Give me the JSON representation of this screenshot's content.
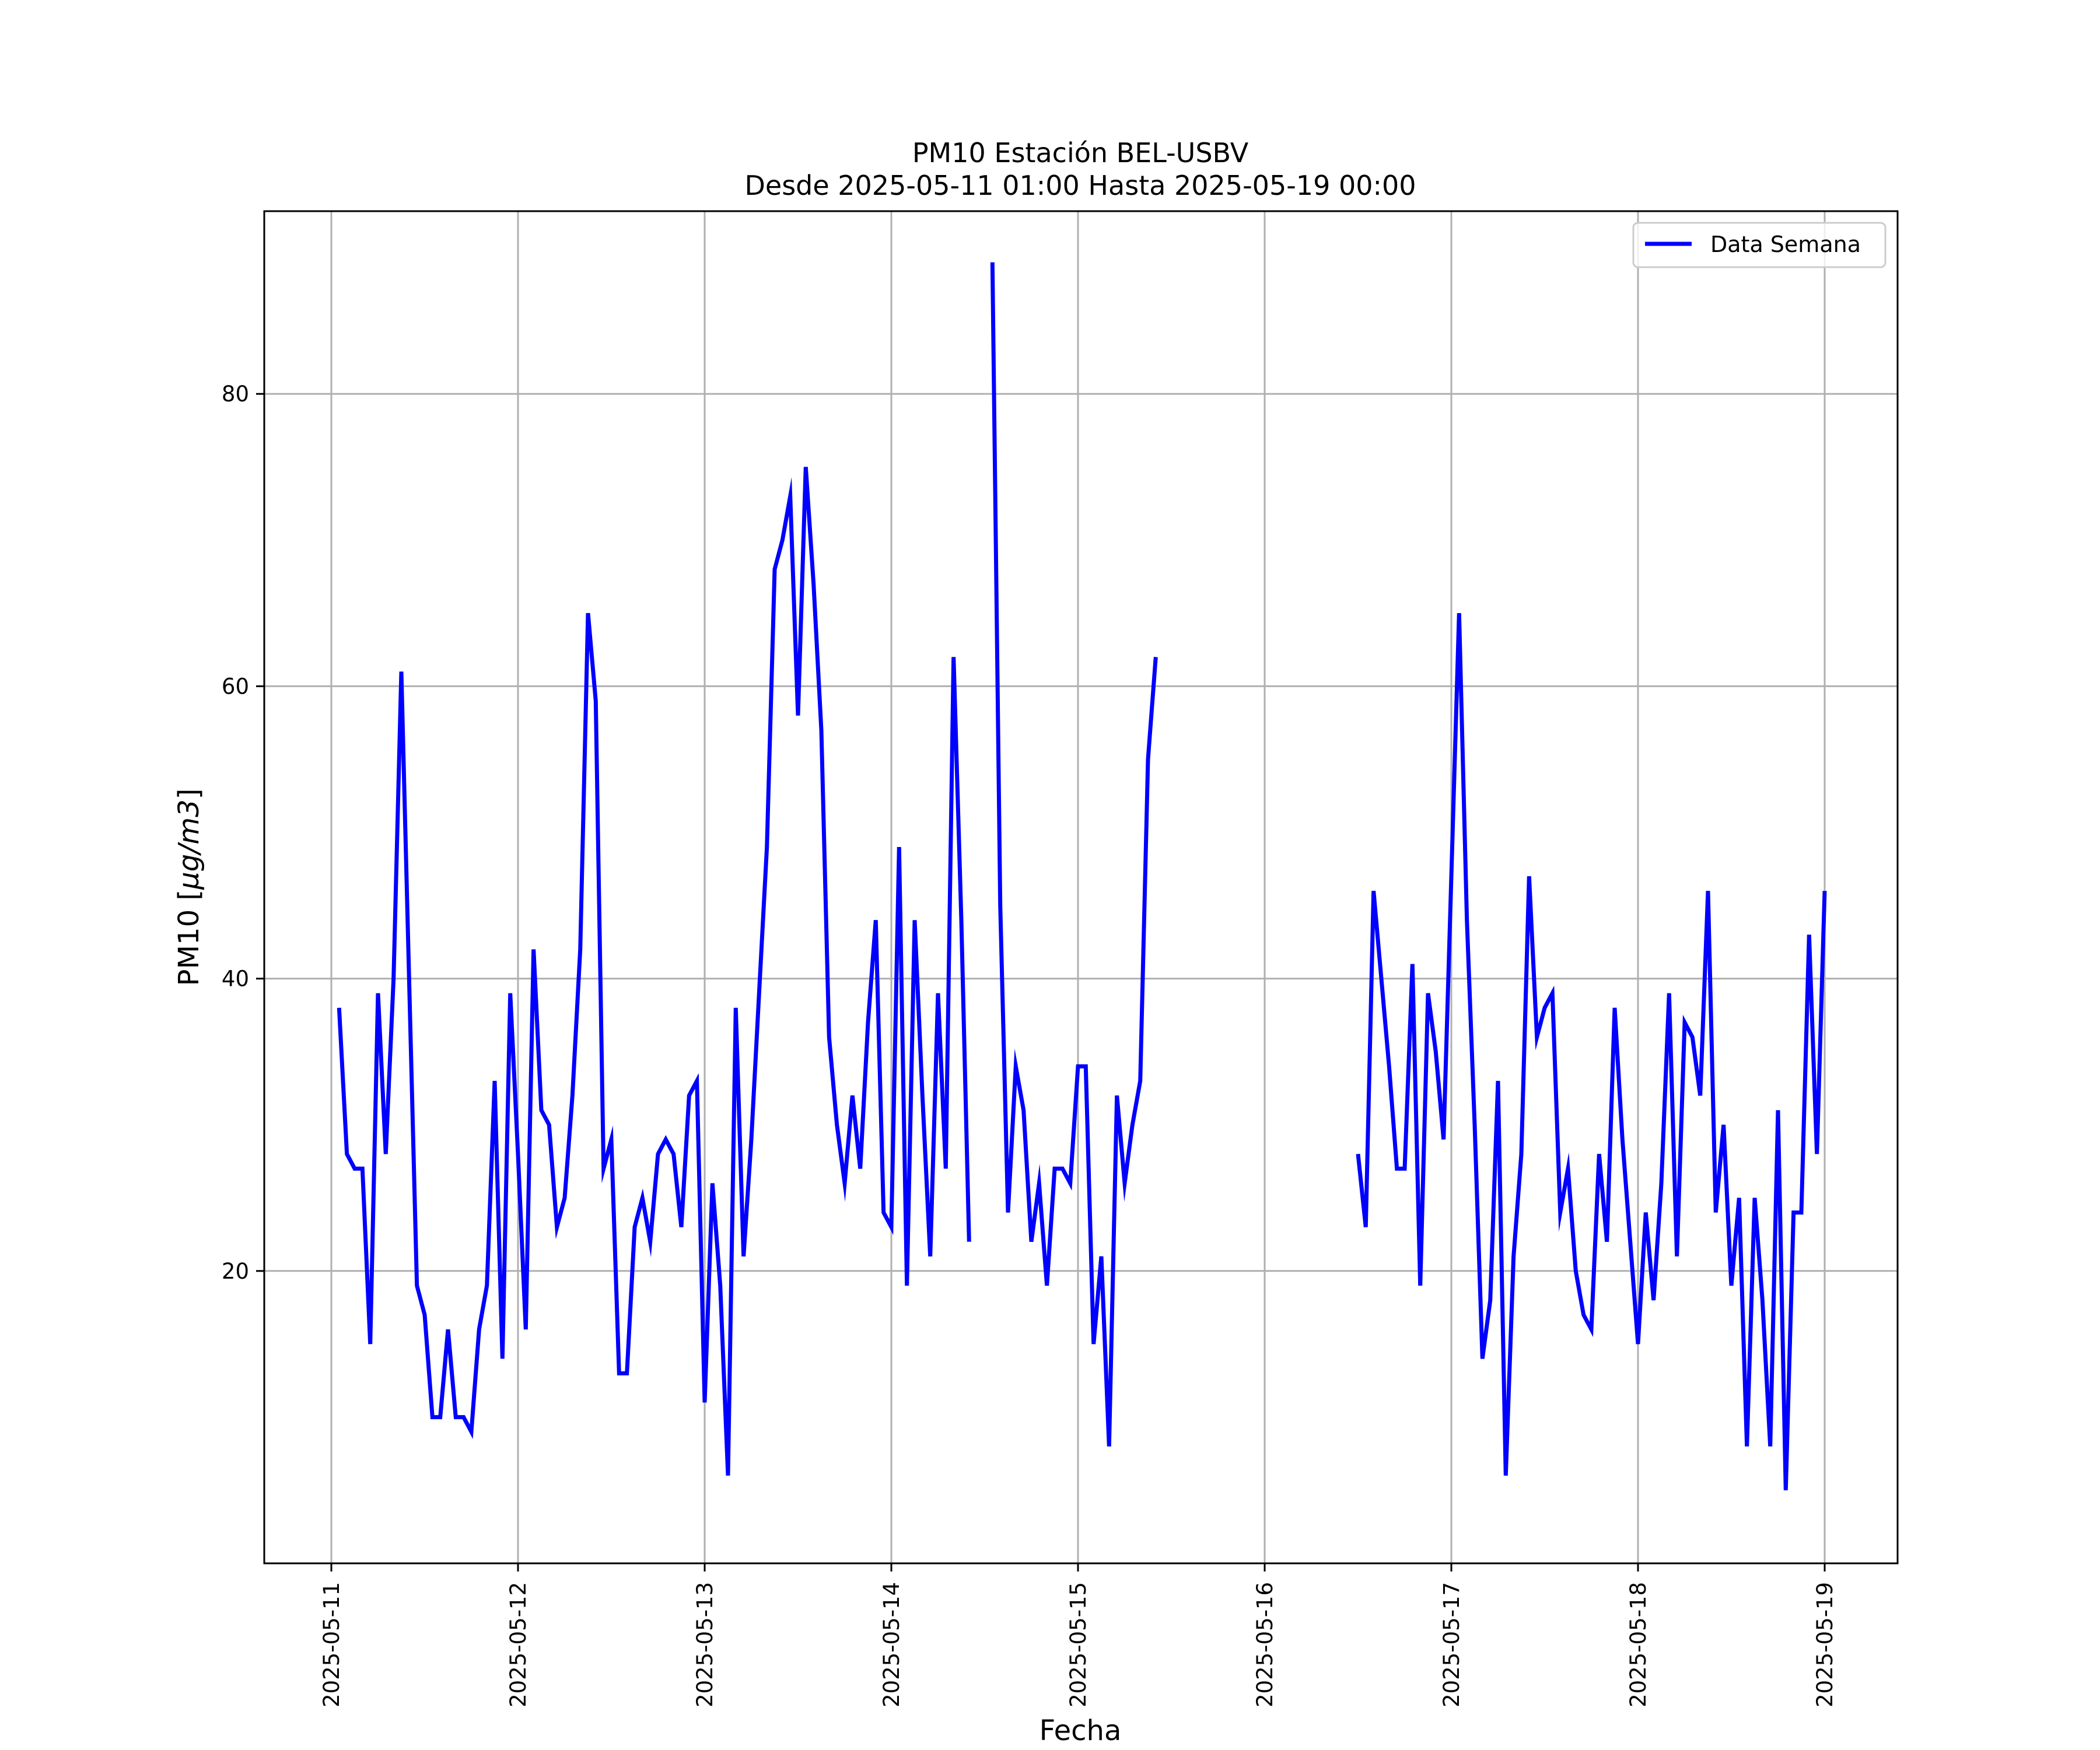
{
  "chart_data": {
    "type": "line",
    "title_line1": "PM10 Estación BEL-USBV",
    "title_line2": "Desde 2025-05-11 01:00 Hasta 2025-05-19 00:00",
    "xlabel": "Fecha",
    "ylabel_prefix": "PM10 [",
    "ylabel_unit": "μg/m3",
    "ylabel_suffix": "]",
    "x_tick_labels": [
      "2025-05-11",
      "2025-05-12",
      "2025-05-13",
      "2025-05-14",
      "2025-05-15",
      "2025-05-16",
      "2025-05-17",
      "2025-05-18",
      "2025-05-19"
    ],
    "y_ticks": [
      20,
      40,
      60,
      80
    ],
    "ylim": [
      0,
      92.5
    ],
    "grid": true,
    "legend_position": "top-right",
    "series": [
      {
        "name": "Data Semana",
        "color": "#0000ff",
        "segments": [
          [
            [
              "2025-05-11 01:00",
              38
            ],
            [
              "2025-05-11 02:00",
              28
            ],
            [
              "2025-05-11 03:00",
              27
            ],
            [
              "2025-05-11 04:00",
              27
            ],
            [
              "2025-05-11 05:00",
              15
            ],
            [
              "2025-05-11 06:00",
              39
            ],
            [
              "2025-05-11 07:00",
              28
            ],
            [
              "2025-05-11 08:00",
              40
            ],
            [
              "2025-05-11 09:00",
              61
            ],
            [
              "2025-05-11 10:00",
              40
            ],
            [
              "2025-05-11 11:00",
              19
            ],
            [
              "2025-05-11 12:00",
              17
            ],
            [
              "2025-05-11 13:00",
              10
            ],
            [
              "2025-05-11 14:00",
              10
            ],
            [
              "2025-05-11 15:00",
              16
            ],
            [
              "2025-05-11 16:00",
              10
            ],
            [
              "2025-05-11 17:00",
              10
            ],
            [
              "2025-05-11 18:00",
              9
            ],
            [
              "2025-05-11 19:00",
              16
            ],
            [
              "2025-05-11 20:00",
              19
            ],
            [
              "2025-05-11 21:00",
              33
            ],
            [
              "2025-05-11 22:00",
              14
            ],
            [
              "2025-05-11 23:00",
              39
            ],
            [
              "2025-05-12 00:00",
              28
            ],
            [
              "2025-05-12 01:00",
              16
            ],
            [
              "2025-05-12 02:00",
              42
            ],
            [
              "2025-05-12 03:00",
              31
            ],
            [
              "2025-05-12 04:00",
              30
            ],
            [
              "2025-05-12 05:00",
              23
            ],
            [
              "2025-05-12 06:00",
              25
            ],
            [
              "2025-05-12 07:00",
              32
            ],
            [
              "2025-05-12 08:00",
              42
            ],
            [
              "2025-05-12 09:00",
              65
            ],
            [
              "2025-05-12 10:00",
              59
            ],
            [
              "2025-05-12 11:00",
              27
            ],
            [
              "2025-05-12 12:00",
              29
            ],
            [
              "2025-05-12 13:00",
              13
            ],
            [
              "2025-05-12 14:00",
              13
            ],
            [
              "2025-05-12 15:00",
              23
            ],
            [
              "2025-05-12 16:00",
              25
            ],
            [
              "2025-05-12 17:00",
              22
            ],
            [
              "2025-05-12 18:00",
              28
            ],
            [
              "2025-05-12 19:00",
              29
            ],
            [
              "2025-05-12 20:00",
              28
            ],
            [
              "2025-05-12 21:00",
              23
            ],
            [
              "2025-05-12 22:00",
              32
            ],
            [
              "2025-05-12 23:00",
              33
            ],
            [
              "2025-05-13 00:00",
              11
            ],
            [
              "2025-05-13 01:00",
              26
            ],
            [
              "2025-05-13 02:00",
              19
            ],
            [
              "2025-05-13 03:00",
              6
            ],
            [
              "2025-05-13 04:00",
              38
            ],
            [
              "2025-05-13 05:00",
              21
            ],
            [
              "2025-05-13 06:00",
              29
            ],
            [
              "2025-05-13 07:00",
              39
            ],
            [
              "2025-05-13 08:00",
              49
            ],
            [
              "2025-05-13 09:00",
              68
            ],
            [
              "2025-05-13 10:00",
              70
            ],
            [
              "2025-05-13 11:00",
              73
            ],
            [
              "2025-05-13 12:00",
              58
            ],
            [
              "2025-05-13 13:00",
              75
            ],
            [
              "2025-05-13 14:00",
              67
            ],
            [
              "2025-05-13 15:00",
              57
            ],
            [
              "2025-05-13 16:00",
              36
            ],
            [
              "2025-05-13 17:00",
              30
            ],
            [
              "2025-05-13 18:00",
              26
            ],
            [
              "2025-05-13 19:00",
              32
            ],
            [
              "2025-05-13 20:00",
              27
            ],
            [
              "2025-05-13 21:00",
              37
            ],
            [
              "2025-05-13 22:00",
              44
            ],
            [
              "2025-05-13 23:00",
              24
            ],
            [
              "2025-05-14 00:00",
              23
            ],
            [
              "2025-05-14 01:00",
              49
            ],
            [
              "2025-05-14 02:00",
              19
            ],
            [
              "2025-05-14 03:00",
              44
            ],
            [
              "2025-05-14 04:00",
              32
            ],
            [
              "2025-05-14 05:00",
              21
            ],
            [
              "2025-05-14 06:00",
              39
            ],
            [
              "2025-05-14 07:00",
              27
            ],
            [
              "2025-05-14 08:00",
              62
            ],
            [
              "2025-05-14 09:00",
              44
            ],
            [
              "2025-05-14 10:00",
              22
            ]
          ],
          [
            [
              "2025-05-14 13:00",
              89
            ],
            [
              "2025-05-14 14:00",
              45
            ],
            [
              "2025-05-14 15:00",
              24
            ],
            [
              "2025-05-14 16:00",
              34
            ],
            [
              "2025-05-14 17:00",
              31
            ],
            [
              "2025-05-14 18:00",
              22
            ],
            [
              "2025-05-14 19:00",
              26
            ],
            [
              "2025-05-14 20:00",
              19
            ],
            [
              "2025-05-14 21:00",
              27
            ],
            [
              "2025-05-14 22:00",
              27
            ],
            [
              "2025-05-14 23:00",
              26
            ],
            [
              "2025-05-15 00:00",
              34
            ],
            [
              "2025-05-15 01:00",
              34
            ],
            [
              "2025-05-15 02:00",
              15
            ],
            [
              "2025-05-15 03:00",
              21
            ],
            [
              "2025-05-15 04:00",
              8
            ],
            [
              "2025-05-15 05:00",
              32
            ],
            [
              "2025-05-15 06:00",
              26
            ],
            [
              "2025-05-15 07:00",
              30
            ],
            [
              "2025-05-15 08:00",
              33
            ],
            [
              "2025-05-15 09:00",
              55
            ],
            [
              "2025-05-15 10:00",
              62
            ]
          ],
          [
            [
              "2025-05-16 12:00",
              28
            ],
            [
              "2025-05-16 13:00",
              23
            ],
            [
              "2025-05-16 14:00",
              46
            ],
            [
              "2025-05-16 15:00",
              40
            ],
            [
              "2025-05-16 16:00",
              34
            ],
            [
              "2025-05-16 17:00",
              27
            ],
            [
              "2025-05-16 18:00",
              27
            ],
            [
              "2025-05-16 19:00",
              41
            ],
            [
              "2025-05-16 20:00",
              19
            ],
            [
              "2025-05-16 21:00",
              39
            ],
            [
              "2025-05-16 22:00",
              35
            ],
            [
              "2025-05-16 23:00",
              29
            ],
            [
              "2025-05-17 00:00",
              47
            ],
            [
              "2025-05-17 01:00",
              65
            ],
            [
              "2025-05-17 02:00",
              44
            ],
            [
              "2025-05-17 03:00",
              30
            ],
            [
              "2025-05-17 04:00",
              14
            ],
            [
              "2025-05-17 05:00",
              18
            ],
            [
              "2025-05-17 06:00",
              33
            ],
            [
              "2025-05-17 07:00",
              6
            ],
            [
              "2025-05-17 08:00",
              21
            ],
            [
              "2025-05-17 09:00",
              28
            ],
            [
              "2025-05-17 10:00",
              47
            ],
            [
              "2025-05-17 11:00",
              36
            ],
            [
              "2025-05-17 12:00",
              38
            ],
            [
              "2025-05-17 13:00",
              39
            ],
            [
              "2025-05-17 14:00",
              24
            ],
            [
              "2025-05-17 15:00",
              27
            ],
            [
              "2025-05-17 16:00",
              20
            ],
            [
              "2025-05-17 17:00",
              17
            ],
            [
              "2025-05-17 18:00",
              16
            ],
            [
              "2025-05-17 19:00",
              28
            ],
            [
              "2025-05-17 20:00",
              22
            ],
            [
              "2025-05-17 21:00",
              38
            ],
            [
              "2025-05-17 22:00",
              29
            ],
            [
              "2025-05-17 23:00",
              22
            ],
            [
              "2025-05-18 00:00",
              15
            ],
            [
              "2025-05-18 01:00",
              24
            ],
            [
              "2025-05-18 02:00",
              18
            ],
            [
              "2025-05-18 03:00",
              26
            ],
            [
              "2025-05-18 04:00",
              39
            ],
            [
              "2025-05-18 05:00",
              21
            ],
            [
              "2025-05-18 06:00",
              37
            ],
            [
              "2025-05-18 07:00",
              36
            ],
            [
              "2025-05-18 08:00",
              32
            ],
            [
              "2025-05-18 09:00",
              46
            ],
            [
              "2025-05-18 10:00",
              24
            ],
            [
              "2025-05-18 11:00",
              30
            ],
            [
              "2025-05-18 12:00",
              19
            ],
            [
              "2025-05-18 13:00",
              25
            ],
            [
              "2025-05-18 14:00",
              8
            ],
            [
              "2025-05-18 15:00",
              25
            ],
            [
              "2025-05-18 16:00",
              18
            ],
            [
              "2025-05-18 17:00",
              8
            ],
            [
              "2025-05-18 18:00",
              31
            ],
            [
              "2025-05-18 19:00",
              5
            ],
            [
              "2025-05-18 20:00",
              24
            ],
            [
              "2025-05-18 21:00",
              24
            ],
            [
              "2025-05-18 22:00",
              43
            ],
            [
              "2025-05-18 23:00",
              28
            ],
            [
              "2025-05-19 00:00",
              46
            ]
          ]
        ]
      }
    ]
  }
}
